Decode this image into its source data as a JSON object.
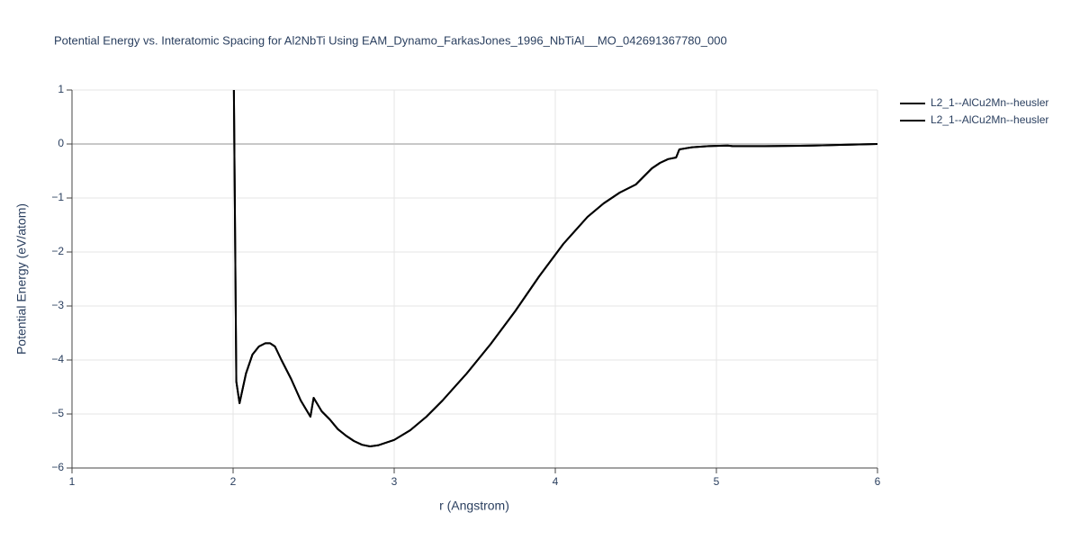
{
  "chart_data": {
    "type": "line",
    "title": "Potential Energy vs. Interatomic Spacing for Al2NbTi Using EAM_Dynamo_FarkasJones_1996_NbTiAl__MO_042691367780_000",
    "xlabel": "r (Angstrom)",
    "ylabel": "Potential Energy (eV/atom)",
    "x": [
      2.005,
      2.02,
      2.04,
      2.08,
      2.12,
      2.16,
      2.2,
      2.23,
      2.26,
      2.3,
      2.36,
      2.42,
      2.48,
      2.5,
      2.55,
      2.6,
      2.65,
      2.7,
      2.75,
      2.8,
      2.85,
      2.9,
      2.95,
      3.0,
      3.1,
      3.2,
      3.3,
      3.45,
      3.6,
      3.75,
      3.9,
      4.05,
      4.2,
      4.3,
      4.4,
      4.5,
      4.55,
      4.6,
      4.65,
      4.7,
      4.75,
      4.77,
      4.85,
      4.95,
      5.07,
      5.1,
      5.3,
      5.6,
      6.0
    ],
    "series": [
      {
        "name": "L2_1--AlCu2Mn--heusler",
        "color": "#000000",
        "values": [
          1.0,
          -4.4,
          -4.8,
          -4.25,
          -3.9,
          -3.75,
          -3.69,
          -3.69,
          -3.75,
          -4.0,
          -4.35,
          -4.75,
          -5.05,
          -4.7,
          -4.95,
          -5.1,
          -5.28,
          -5.4,
          -5.5,
          -5.57,
          -5.6,
          -5.58,
          -5.53,
          -5.48,
          -5.3,
          -5.05,
          -4.75,
          -4.25,
          -3.7,
          -3.1,
          -2.45,
          -1.85,
          -1.35,
          -1.1,
          -0.9,
          -0.75,
          -0.6,
          -0.45,
          -0.35,
          -0.28,
          -0.25,
          -0.1,
          -0.06,
          -0.04,
          -0.03,
          -0.04,
          -0.04,
          -0.03,
          0.0
        ]
      },
      {
        "name": "L2_1--AlCu2Mn--heusler",
        "color": "#000000",
        "values": [
          1.0,
          -4.4,
          -4.8,
          -4.25,
          -3.9,
          -3.75,
          -3.69,
          -3.69,
          -3.75,
          -4.0,
          -4.35,
          -4.75,
          -5.05,
          -4.7,
          -4.95,
          -5.1,
          -5.28,
          -5.4,
          -5.5,
          -5.57,
          -5.6,
          -5.58,
          -5.53,
          -5.48,
          -5.3,
          -5.05,
          -4.75,
          -4.25,
          -3.7,
          -3.1,
          -2.45,
          -1.85,
          -1.35,
          -1.1,
          -0.9,
          -0.75,
          -0.6,
          -0.45,
          -0.35,
          -0.28,
          -0.25,
          -0.1,
          -0.06,
          -0.04,
          -0.03,
          -0.04,
          -0.04,
          -0.03,
          0.0
        ]
      }
    ],
    "xlim": [
      1,
      6
    ],
    "xticks": [
      1,
      2,
      3,
      4,
      5,
      6
    ],
    "ylim": [
      -6,
      1
    ],
    "yticks": [
      {
        "value": -6,
        "label": "−6"
      },
      {
        "value": -5,
        "label": "−5"
      },
      {
        "value": -4,
        "label": "−4"
      },
      {
        "value": -3,
        "label": "−3"
      },
      {
        "value": -2,
        "label": "−2"
      },
      {
        "value": -1,
        "label": "−1"
      },
      0,
      1
    ],
    "grid": true,
    "legend": "right"
  }
}
